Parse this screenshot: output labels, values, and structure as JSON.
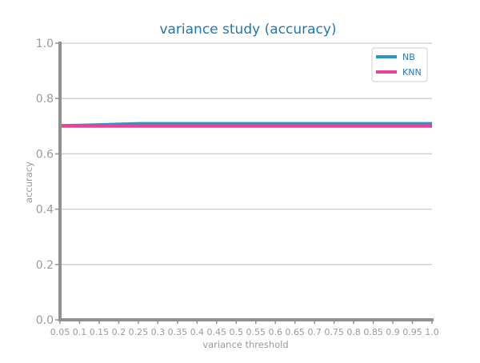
{
  "chart_data": {
    "type": "line",
    "title": "variance study (accuracy)",
    "xlabel": "variance threshold",
    "ylabel": "accuracy",
    "x": [
      "0.05",
      "0.1",
      "0.15",
      "0.2",
      "0.25",
      "0.3",
      "0.35",
      "0.4",
      "0.45",
      "0.5",
      "0.55",
      "0.6",
      "0.65",
      "0.7",
      "0.75",
      "0.8",
      "0.85",
      "0.9",
      "0.95",
      "1.0"
    ],
    "ylim": [
      0.0,
      1.0
    ],
    "yticks": [
      "0.0",
      "0.2",
      "0.4",
      "0.6",
      "0.8",
      "1.0"
    ],
    "grid": "horizontal",
    "legend_position": "top-right",
    "series": [
      {
        "name": "NB",
        "color": "#2a96c7",
        "values": [
          0.702,
          0.703,
          0.705,
          0.707,
          0.709,
          0.709,
          0.709,
          0.709,
          0.709,
          0.709,
          0.709,
          0.709,
          0.709,
          0.709,
          0.709,
          0.709,
          0.709,
          0.709,
          0.709,
          0.709
        ]
      },
      {
        "name": "KNN",
        "color": "#e8429b",
        "values": [
          0.7,
          0.7,
          0.7,
          0.7,
          0.7,
          0.7,
          0.7,
          0.7,
          0.7,
          0.7,
          0.7,
          0.7,
          0.7,
          0.7,
          0.7,
          0.7,
          0.7,
          0.7,
          0.7,
          0.7
        ]
      }
    ]
  }
}
